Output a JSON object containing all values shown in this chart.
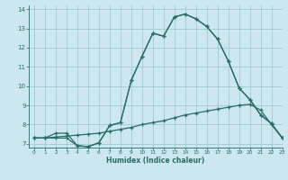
{
  "xlabel": "Humidex (Indice chaleur)",
  "bg_color": "#cce8ee",
  "grid_color": "#a0c8d4",
  "line_color": "#2a6b6b",
  "xlim": [
    -0.5,
    23
  ],
  "ylim": [
    6.8,
    14.2
  ],
  "xticks": [
    0,
    1,
    2,
    3,
    4,
    5,
    6,
    7,
    8,
    9,
    10,
    11,
    12,
    13,
    14,
    15,
    16,
    17,
    18,
    19,
    20,
    21,
    22,
    23
  ],
  "yticks": [
    7,
    8,
    9,
    10,
    11,
    12,
    13,
    14
  ],
  "line1_x": [
    0,
    1,
    2,
    3,
    4,
    5,
    6,
    7,
    8,
    9,
    10,
    11,
    12,
    13,
    14,
    15,
    16,
    17,
    18,
    19,
    20,
    21,
    22,
    23
  ],
  "line1_y": [
    7.3,
    7.3,
    7.35,
    7.4,
    7.45,
    7.5,
    7.55,
    7.65,
    7.75,
    7.85,
    8.0,
    8.1,
    8.2,
    8.35,
    8.5,
    8.6,
    8.7,
    8.8,
    8.9,
    9.0,
    9.05,
    8.75,
    8.0,
    7.3
  ],
  "line2_x": [
    0,
    1,
    2,
    3,
    4,
    5,
    6,
    7,
    8,
    9,
    10,
    11,
    12,
    13,
    14,
    15,
    16,
    17,
    18,
    19,
    20,
    21,
    22,
    23
  ],
  "line2_y": [
    7.3,
    7.3,
    7.55,
    7.55,
    6.9,
    6.85,
    7.05,
    7.95,
    8.1,
    10.3,
    11.55,
    12.75,
    12.6,
    13.6,
    13.75,
    13.5,
    13.1,
    12.45,
    11.3,
    9.9,
    9.3,
    8.5,
    8.05,
    7.3
  ],
  "line3_x": [
    0,
    1,
    2,
    3,
    4,
    5,
    6,
    7,
    8,
    9,
    10,
    11,
    12,
    13,
    14,
    15,
    16,
    17,
    18,
    19,
    20,
    21,
    22,
    23
  ],
  "line3_y": [
    7.3,
    7.3,
    7.3,
    7.3,
    6.9,
    6.85,
    7.05,
    7.95,
    8.1,
    10.3,
    11.55,
    12.75,
    12.6,
    13.6,
    13.75,
    13.5,
    13.1,
    12.45,
    11.3,
    9.9,
    9.3,
    8.5,
    8.05,
    7.3
  ]
}
